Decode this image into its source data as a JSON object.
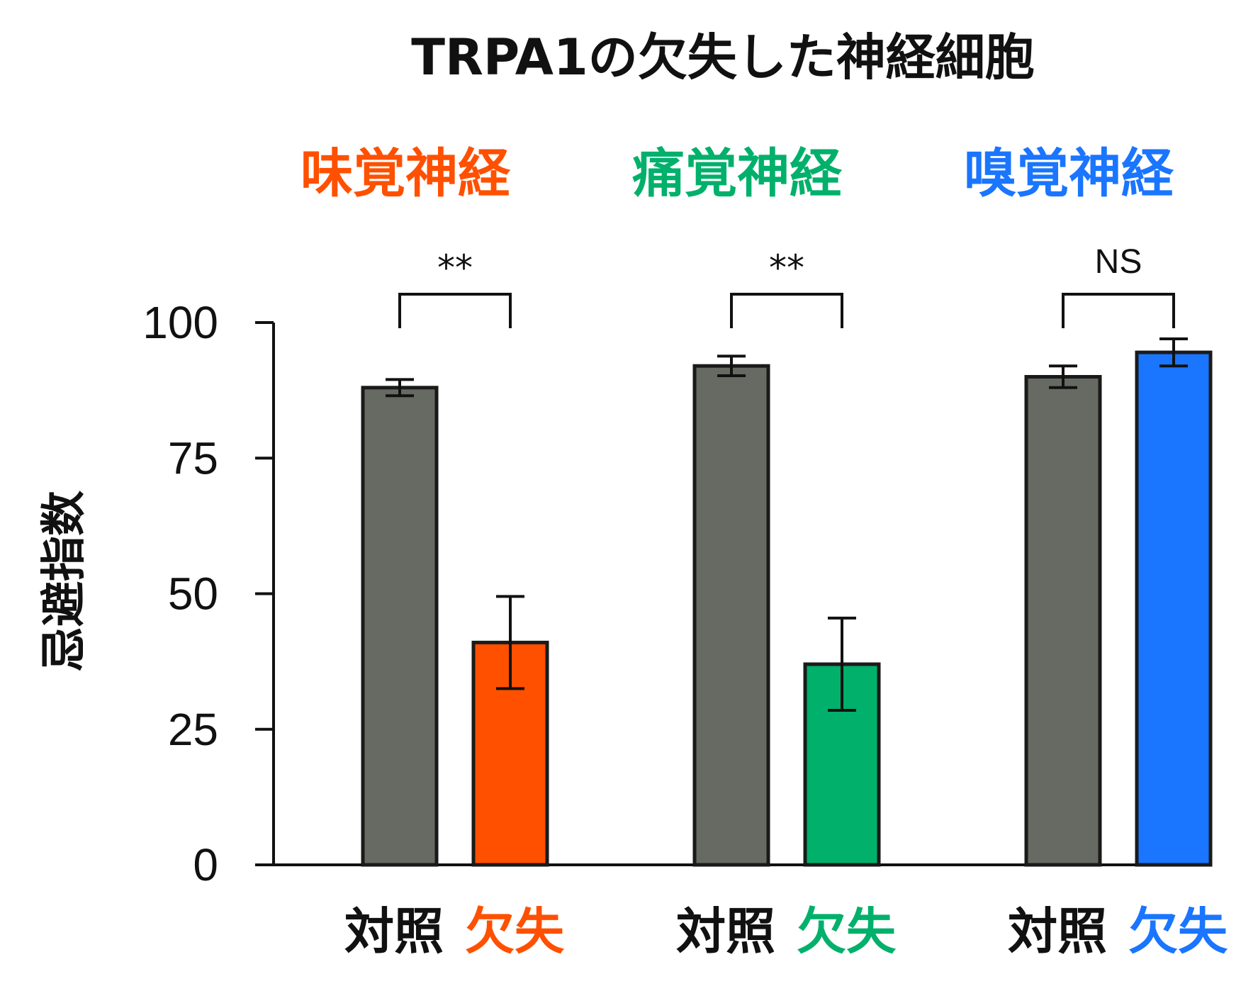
{
  "chart_data": {
    "type": "bar",
    "title": "TRPA1の欠失した神経細胞",
    "ylabel": "忌避指数",
    "ylim": [
      0,
      100
    ],
    "yticks": [
      0,
      25,
      50,
      75,
      100
    ],
    "grid": false,
    "groups": [
      {
        "label": "味覚神経",
        "color": "#ff5000",
        "significance": "**",
        "bars": [
          {
            "category": "対照",
            "value": 88,
            "error": 1.5,
            "color": "#666a63"
          },
          {
            "category": "欠失",
            "value": 41,
            "error": 8.5,
            "color": "#ff5000"
          }
        ]
      },
      {
        "label": "痛覚神経",
        "color": "#00b06b",
        "significance": "**",
        "bars": [
          {
            "category": "対照",
            "value": 92,
            "error": 1.8,
            "color": "#666a63"
          },
          {
            "category": "欠失",
            "value": 37,
            "error": 8.5,
            "color": "#00b06b"
          }
        ]
      },
      {
        "label": "嗅覚神経",
        "color": "#1a75ff",
        "significance": "NS",
        "bars": [
          {
            "category": "対照",
            "value": 90,
            "error": 2.0,
            "color": "#666a63"
          },
          {
            "category": "欠失",
            "value": 94.5,
            "error": 2.5,
            "color": "#1a75ff"
          }
        ]
      }
    ]
  }
}
